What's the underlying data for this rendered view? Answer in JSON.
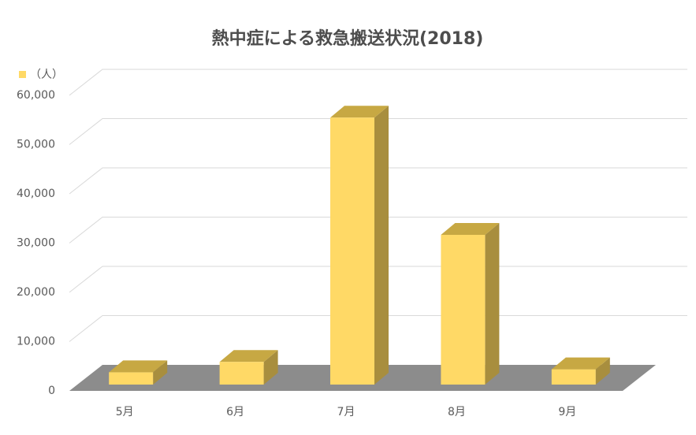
{
  "chart_data": {
    "type": "bar3d",
    "title": "熱中症による救急搬送状況(2018)",
    "unit": "（人）",
    "categories": [
      "5月",
      "6月",
      "7月",
      "8月",
      "9月"
    ],
    "values": [
      2500,
      4600,
      54200,
      30400,
      3100
    ],
    "color": "#ffd966",
    "ylim": [
      0,
      60000
    ],
    "yticks": [
      0,
      {
        "value": 10000,
        "label": "10,000"
      },
      {
        "value": 20000,
        "label": "20,000"
      },
      {
        "value": 30000,
        "label": "30,000"
      },
      {
        "value": 40000,
        "label": "40,000"
      },
      {
        "value": 50000,
        "label": "50,000"
      },
      {
        "value": 60000,
        "label": "60,000"
      }
    ],
    "grid": true
  }
}
